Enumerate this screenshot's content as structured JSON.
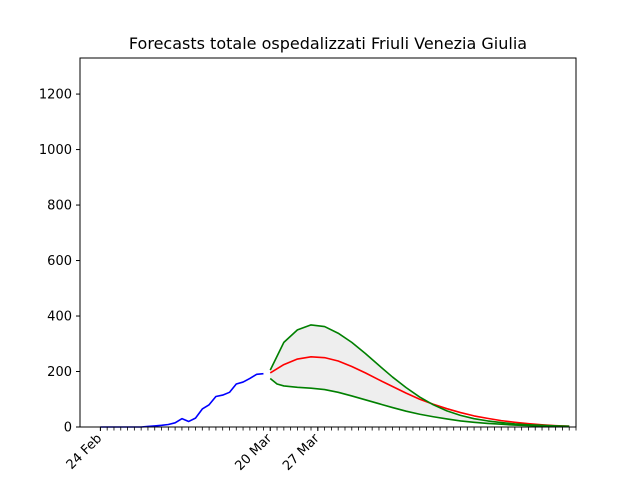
{
  "chart_data": {
    "type": "line",
    "title": "Forecasts totale ospedalizzati Friuli Venezia Giulia",
    "xlabel": "",
    "ylabel": "",
    "x_range": [
      "2020-02-21",
      "2020-05-04"
    ],
    "ylim": [
      0,
      1330
    ],
    "y_ticks": [
      0,
      200,
      400,
      600,
      800,
      1000,
      1200
    ],
    "x_tick_labels": [
      {
        "date": "2020-02-24",
        "label": "24 Feb"
      },
      {
        "date": "2020-03-20",
        "label": "20 Mar"
      },
      {
        "date": "2020-03-27",
        "label": "27 Mar"
      }
    ],
    "x_minor_ticks": {
      "start": "2020-02-24",
      "end": "2020-05-04",
      "step_days": 1
    },
    "grid": false,
    "series": [
      {
        "color": "#0000ff",
        "x": [
          "2020-02-24",
          "2020-02-25",
          "2020-02-26",
          "2020-02-27",
          "2020-02-28",
          "2020-02-29",
          "2020-03-01",
          "2020-03-02",
          "2020-03-03",
          "2020-03-04",
          "2020-03-05",
          "2020-03-06",
          "2020-03-07",
          "2020-03-08",
          "2020-03-09",
          "2020-03-10",
          "2020-03-11",
          "2020-03-12",
          "2020-03-13",
          "2020-03-14",
          "2020-03-15",
          "2020-03-16",
          "2020-03-17",
          "2020-03-18",
          "2020-03-19"
        ],
        "values": [
          0,
          0,
          0,
          0,
          0,
          0,
          0,
          2,
          4,
          6,
          9,
          15,
          30,
          20,
          32,
          65,
          80,
          110,
          115,
          125,
          155,
          162,
          175,
          190,
          192
        ]
      },
      {
        "color": "#ff0000",
        "x": [
          "2020-03-20",
          "2020-03-22",
          "2020-03-24",
          "2020-03-26",
          "2020-03-28",
          "2020-03-30",
          "2020-04-01",
          "2020-04-03",
          "2020-04-05",
          "2020-04-07",
          "2020-04-09",
          "2020-04-11",
          "2020-04-13",
          "2020-04-15",
          "2020-04-17",
          "2020-04-19",
          "2020-04-21",
          "2020-04-23",
          "2020-04-25",
          "2020-04-27",
          "2020-04-29",
          "2020-05-01",
          "2020-05-03"
        ],
        "values": [
          195,
          225,
          245,
          253,
          250,
          238,
          218,
          195,
          170,
          146,
          122,
          100,
          82,
          66,
          52,
          40,
          31,
          23,
          17,
          12,
          8,
          5,
          3
        ]
      },
      {
        "color": "#008000",
        "x": [
          "2020-03-20",
          "2020-03-22",
          "2020-03-24",
          "2020-03-26",
          "2020-03-28",
          "2020-03-30",
          "2020-04-01",
          "2020-04-03",
          "2020-04-05",
          "2020-04-07",
          "2020-04-09",
          "2020-04-11",
          "2020-04-13",
          "2020-04-15",
          "2020-04-17",
          "2020-04-19",
          "2020-04-21",
          "2020-04-23",
          "2020-04-25",
          "2020-04-27",
          "2020-04-29",
          "2020-05-01",
          "2020-05-03"
        ],
        "values": [
          205,
          305,
          350,
          368,
          362,
          338,
          305,
          265,
          222,
          180,
          142,
          108,
          80,
          58,
          42,
          30,
          22,
          16,
          11,
          8,
          6,
          4,
          3
        ]
      },
      {
        "color": "#008000",
        "x": [
          "2020-03-20",
          "2020-03-21",
          "2020-03-22",
          "2020-03-24",
          "2020-03-26",
          "2020-03-28",
          "2020-03-30",
          "2020-04-01",
          "2020-04-03",
          "2020-04-05",
          "2020-04-07",
          "2020-04-09",
          "2020-04-11",
          "2020-04-13",
          "2020-04-15",
          "2020-04-17",
          "2020-04-19",
          "2020-04-21",
          "2020-04-23",
          "2020-04-25",
          "2020-04-27",
          "2020-04-29",
          "2020-05-01",
          "2020-05-03"
        ],
        "values": [
          175,
          155,
          148,
          143,
          140,
          135,
          125,
          112,
          98,
          84,
          70,
          57,
          46,
          37,
          29,
          22,
          17,
          13,
          10,
          7,
          5,
          4,
          3,
          2
        ]
      }
    ],
    "band": {
      "between": "upper and lower green series",
      "fill": "#eeeeee"
    }
  }
}
